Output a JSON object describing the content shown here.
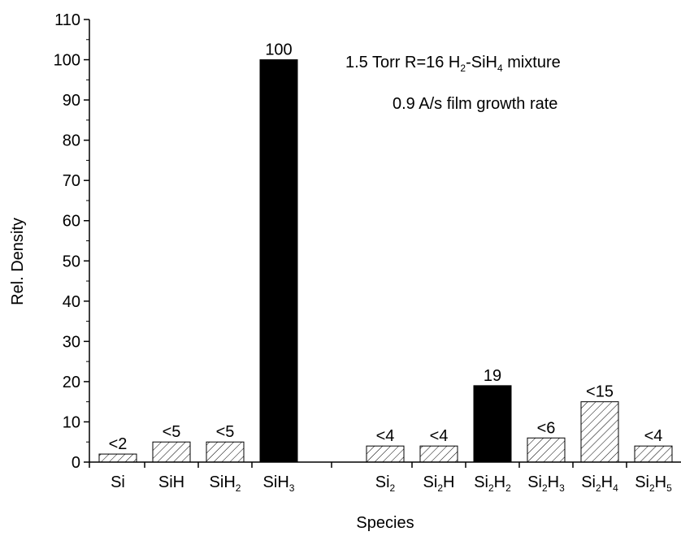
{
  "chart_data": {
    "type": "bar",
    "xlabel": "Species",
    "ylabel": "Rel. Density",
    "ylim": [
      0,
      110
    ],
    "yticks": [
      0,
      10,
      20,
      30,
      40,
      50,
      60,
      70,
      80,
      90,
      100,
      110
    ],
    "categories": [
      {
        "base": "Si",
        "sub": ""
      },
      {
        "base": "SiH",
        "sub": ""
      },
      {
        "base": "SiH",
        "sub": "2"
      },
      {
        "base": "SiH",
        "sub": "3"
      },
      {
        "base": "Si",
        "sub": "2"
      },
      {
        "base": "Si",
        "sub": "2",
        "tail": "H",
        "tail_sub": ""
      },
      {
        "base": "Si",
        "sub": "2",
        "tail": "H",
        "tail_sub": "2"
      },
      {
        "base": "Si",
        "sub": "2",
        "tail": "H",
        "tail_sub": "3"
      },
      {
        "base": "Si",
        "sub": "2",
        "tail": "H",
        "tail_sub": "4"
      },
      {
        "base": "Si",
        "sub": "2",
        "tail": "H",
        "tail_sub": "5"
      }
    ],
    "values": [
      2,
      5,
      5,
      100,
      4,
      4,
      19,
      6,
      15,
      4
    ],
    "bar_labels": [
      "<2",
      "<5",
      "<5",
      "100",
      "<4",
      "<4",
      "19",
      "<6",
      "<15",
      "<4"
    ],
    "fill": [
      "hatched",
      "hatched",
      "hatched",
      "solid",
      "hatched",
      "hatched",
      "solid",
      "hatched",
      "hatched",
      "hatched"
    ],
    "annotations": {
      "line1": {
        "a": "1.5 Torr R=16  H",
        "a_sub": "2",
        "b": "-SiH",
        "b_sub": "4",
        "c": " mixture"
      },
      "line2": "0.9 A/s film growth rate"
    },
    "colors": {
      "solid": "#000000",
      "axis": "#000000",
      "background": "#ffffff"
    }
  }
}
